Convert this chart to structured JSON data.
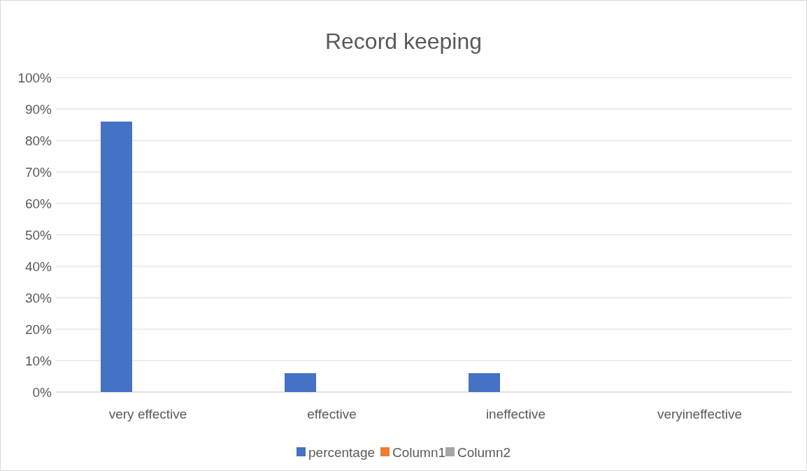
{
  "chart_data": {
    "type": "bar",
    "title": "Record keeping",
    "categories": [
      "very effective",
      "effective",
      "ineffective",
      "veryineffective"
    ],
    "series": [
      {
        "name": "percentage",
        "color": "#4472c4",
        "values": [
          86,
          6,
          6,
          0
        ]
      },
      {
        "name": "Column1",
        "color": "#ed7d31",
        "values": [
          null,
          null,
          null,
          null
        ]
      },
      {
        "name": "Column2",
        "color": "#a5a5a5",
        "values": [
          null,
          null,
          null,
          null
        ]
      }
    ],
    "ylim": [
      0,
      100
    ],
    "yticks": [
      {
        "value": 0,
        "label": "0%"
      },
      {
        "value": 10,
        "label": "10%"
      },
      {
        "value": 20,
        "label": "20%"
      },
      {
        "value": 30,
        "label": "30%"
      },
      {
        "value": 40,
        "label": "40%"
      },
      {
        "value": 50,
        "label": "50%"
      },
      {
        "value": 60,
        "label": "60%"
      },
      {
        "value": 70,
        "label": "70%"
      },
      {
        "value": 80,
        "label": "80%"
      },
      {
        "value": 90,
        "label": "90%"
      },
      {
        "value": 100,
        "label": "100%"
      }
    ],
    "grid": "y",
    "legend": "bottom"
  }
}
